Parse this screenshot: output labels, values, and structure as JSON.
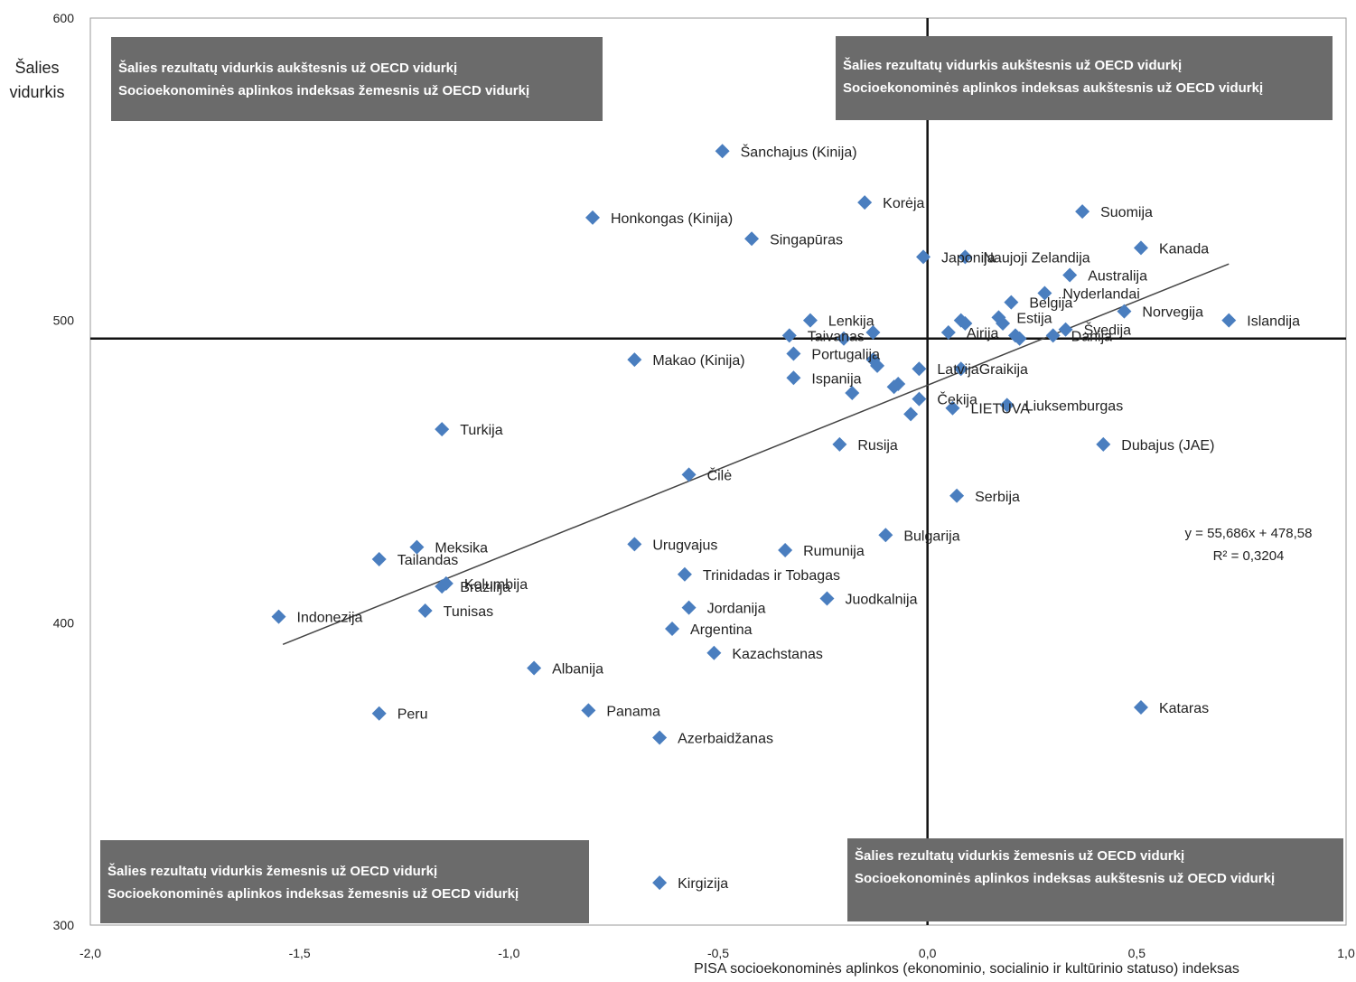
{
  "chart_data": {
    "type": "scatter",
    "title": "",
    "ylabel": "Šalies vidurkis",
    "xlabel": "PISA socioekonominės aplinkos (ekonominio, socialinio ir kultūrinio statuso) indeksas",
    "xlim": [
      -2.0,
      1.0
    ],
    "ylim": [
      300,
      600
    ],
    "xticks": [
      "-2,0",
      "-1,5",
      "-1,0",
      "-0,5",
      "0,0",
      "0,5",
      "1,0"
    ],
    "yticks": [
      "300",
      "400",
      "500",
      "600"
    ],
    "reference_lines": {
      "x": 0.0,
      "y": 494
    },
    "trendline": {
      "slope": 55.686,
      "intercept": 478.58,
      "x_from": -1.54,
      "x_to": 0.72
    },
    "equation": "y = 55,686x + 478,58",
    "r_squared": "R² = 0,3204",
    "marker_color": "#4a7ebf",
    "points": [
      {
        "label": "Šanchajus (Kinija)",
        "x": -0.49,
        "y": 556
      },
      {
        "label": "Korėja",
        "x": -0.15,
        "y": 539
      },
      {
        "label": "Honkongas (Kinija)",
        "x": -0.8,
        "y": 534
      },
      {
        "label": "Suomija",
        "x": 0.37,
        "y": 536
      },
      {
        "label": "Singapūras",
        "x": -0.42,
        "y": 527
      },
      {
        "label": "Kanada",
        "x": 0.51,
        "y": 524
      },
      {
        "label": "Japonija",
        "x": -0.01,
        "y": 521
      },
      {
        "label": "Naujoji Zelandija",
        "x": 0.09,
        "y": 521
      },
      {
        "label": "Australija",
        "x": 0.34,
        "y": 515
      },
      {
        "label": "Belgija",
        "x": 0.2,
        "y": 506
      },
      {
        "label": "Nyderlandai",
        "x": 0.28,
        "y": 509
      },
      {
        "label": "Norvegija",
        "x": 0.47,
        "y": 503
      },
      {
        "label": "Islandija",
        "x": 0.72,
        "y": 500
      },
      {
        "label": "Estija",
        "x": 0.17,
        "y": 501
      },
      {
        "label": "Švedija",
        "x": 0.33,
        "y": 497
      },
      {
        "label": "Taivanas",
        "x": -0.33,
        "y": 495
      },
      {
        "label": "Lenkija",
        "x": -0.28,
        "y": 500
      },
      {
        "label": "Airija",
        "x": 0.05,
        "y": 496
      },
      {
        "label": "Danija",
        "x": 0.3,
        "y": 495
      },
      {
        "label": "Portugalija",
        "x": -0.32,
        "y": 489
      },
      {
        "label": "Makao (Kinija)",
        "x": -0.7,
        "y": 487
      },
      {
        "label": "Latvija",
        "x": -0.02,
        "y": 484
      },
      {
        "label": "Graikija",
        "x": 0.08,
        "y": 484
      },
      {
        "label": "Ispanija",
        "x": -0.32,
        "y": 481
      },
      {
        "label": "Čekija",
        "x": -0.02,
        "y": 474
      },
      {
        "label": "Liuksemburgas",
        "x": 0.19,
        "y": 472
      },
      {
        "label": "LIETUVA",
        "x": 0.06,
        "y": 471
      },
      {
        "label": "Turkija",
        "x": -1.16,
        "y": 464
      },
      {
        "label": "Rusija",
        "x": -0.21,
        "y": 459
      },
      {
        "label": "Dubajus (JAE)",
        "x": 0.42,
        "y": 459
      },
      {
        "label": "Čilė",
        "x": -0.57,
        "y": 449
      },
      {
        "label": "Serbija",
        "x": 0.07,
        "y": 442
      },
      {
        "label": "Bulgarija",
        "x": -0.1,
        "y": 429
      },
      {
        "label": "Meksika",
        "x": -1.22,
        "y": 425
      },
      {
        "label": "Tailandas",
        "x": -1.31,
        "y": 421
      },
      {
        "label": "Urugvajus",
        "x": -0.7,
        "y": 426
      },
      {
        "label": "Rumunija",
        "x": -0.34,
        "y": 424
      },
      {
        "label": "Trinidadas ir Tobagas",
        "x": -0.58,
        "y": 416
      },
      {
        "label": "Kolumbija",
        "x": -1.15,
        "y": 413
      },
      {
        "label": "Brazilija",
        "x": -1.16,
        "y": 412
      },
      {
        "label": "Juodkalnija",
        "x": -0.24,
        "y": 408
      },
      {
        "label": "Jordanija",
        "x": -0.57,
        "y": 405
      },
      {
        "label": "Tunisas",
        "x": -1.2,
        "y": 404
      },
      {
        "label": "Indonezija",
        "x": -1.55,
        "y": 402
      },
      {
        "label": "Argentina",
        "x": -0.61,
        "y": 398
      },
      {
        "label": "Kazachstanas",
        "x": -0.51,
        "y": 390
      },
      {
        "label": "Albanija",
        "x": -0.94,
        "y": 385
      },
      {
        "label": "Panama",
        "x": -0.81,
        "y": 371
      },
      {
        "label": "Kataras",
        "x": 0.51,
        "y": 372
      },
      {
        "label": "Peru",
        "x": -1.31,
        "y": 370
      },
      {
        "label": "Azerbaidžanas",
        "x": -0.64,
        "y": 362
      },
      {
        "label": "Kirgizija",
        "x": -0.64,
        "y": 314
      }
    ],
    "unlabeled_points": [
      {
        "x": -0.2,
        "y": 494
      },
      {
        "x": -0.13,
        "y": 496
      },
      {
        "x": -0.12,
        "y": 485
      },
      {
        "x": -0.13,
        "y": 487
      },
      {
        "x": -0.08,
        "y": 478
      },
      {
        "x": -0.07,
        "y": 479
      },
      {
        "x": -0.18,
        "y": 476
      },
      {
        "x": -0.04,
        "y": 469
      },
      {
        "x": 0.08,
        "y": 500
      },
      {
        "x": 0.09,
        "y": 499
      },
      {
        "x": 0.18,
        "y": 499
      },
      {
        "x": 0.21,
        "y": 495
      },
      {
        "x": 0.22,
        "y": 494
      }
    ]
  },
  "quadrants": {
    "top_left": {
      "line1": "Šalies rezultatų vidurkis aukštesnis už OECD vidurkį",
      "line2": "Socioekonominės aplinkos indeksas žemesnis už OECD vidurkį"
    },
    "top_right": {
      "line1": "Šalies rezultatų vidurkis aukštesnis už OECD vidurkį",
      "line2": "Socioekonominės aplinkos indeksas aukštesnis už OECD vidurkį"
    },
    "bottom_left": {
      "line1": "Šalies rezultatų vidurkis žemesnis už OECD vidurkį",
      "line2": "Socioekonominės aplinkos indeksas žemesnis už OECD vidurkį"
    },
    "bottom_right": {
      "line1": "Šalies rezultatų vidurkis žemesnis už OECD vidurkį",
      "line2": "Socioekonominės aplinkos indeksas aukštesnis už OECD vidurkį"
    }
  }
}
